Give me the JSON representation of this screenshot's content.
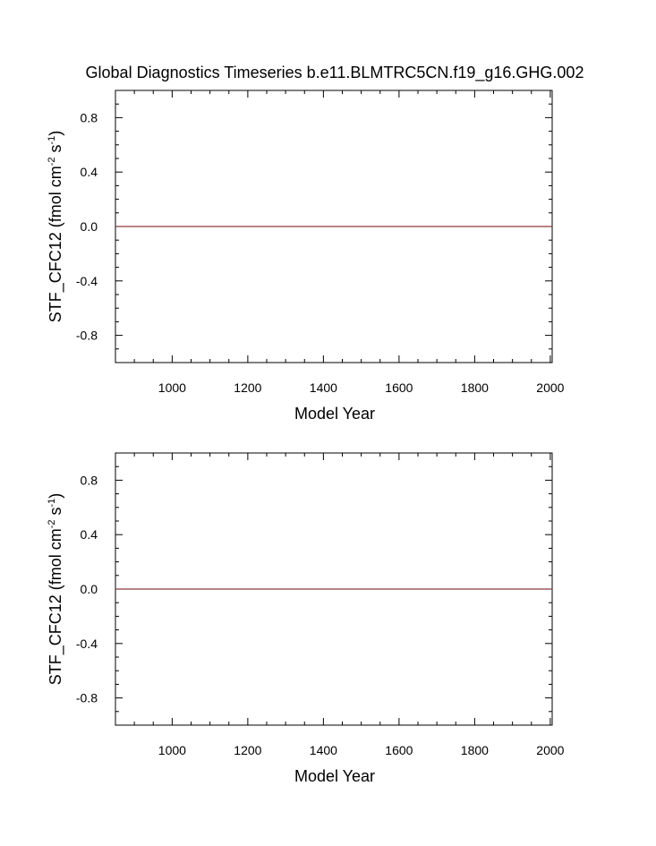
{
  "title": "Global Diagnostics Timeseries b.e11.BLMTRC5CN.f19_g16.GHG.002",
  "colors": {
    "axis": "#000000",
    "series_line": "#8b3a3a",
    "background": "#ffffff"
  },
  "chart_data": [
    {
      "type": "line",
      "title": "Global Diagnostics Timeseries b.e11.BLMTRC5CN.f19_g16.GHG.002",
      "xlabel": "Model Year",
      "ylabel_main": "STF_CFC12 (fmol cm",
      "ylabel_sup1": "-2",
      "ylabel_mid": " s",
      "ylabel_sup2": "-1",
      "ylabel_end": ")",
      "xlim": [
        850,
        2005
      ],
      "ylim": [
        -1.0,
        1.0
      ],
      "xticks": [
        1000,
        1200,
        1400,
        1600,
        1800,
        2000
      ],
      "xtick_labels": [
        "1000",
        "1200",
        "1400",
        "1600",
        "1800",
        "2000"
      ],
      "yticks": [
        0.8,
        0.4,
        0.0,
        -0.4,
        -0.8
      ],
      "ytick_labels": [
        "0.8",
        "0.4",
        "0.0",
        "-0.4",
        "-0.8"
      ],
      "grid": false,
      "series": [
        {
          "x": [
            850,
            2005
          ],
          "y": [
            0.0,
            0.0
          ]
        }
      ]
    },
    {
      "type": "line",
      "title": "",
      "xlabel": "Model Year",
      "ylabel_main": "STF_CFC12 (fmol cm",
      "ylabel_sup1": "-2",
      "ylabel_mid": " s",
      "ylabel_sup2": "-1",
      "ylabel_end": ")",
      "xlim": [
        850,
        2005
      ],
      "ylim": [
        -1.0,
        1.0
      ],
      "xticks": [
        1000,
        1200,
        1400,
        1600,
        1800,
        2000
      ],
      "xtick_labels": [
        "1000",
        "1200",
        "1400",
        "1600",
        "1800",
        "2000"
      ],
      "yticks": [
        0.8,
        0.4,
        0.0,
        -0.4,
        -0.8
      ],
      "ytick_labels": [
        "0.8",
        "0.4",
        "0.0",
        "-0.4",
        "-0.8"
      ],
      "grid": false,
      "series": [
        {
          "x": [
            850,
            2005
          ],
          "y": [
            0.0,
            0.0
          ]
        }
      ]
    }
  ]
}
